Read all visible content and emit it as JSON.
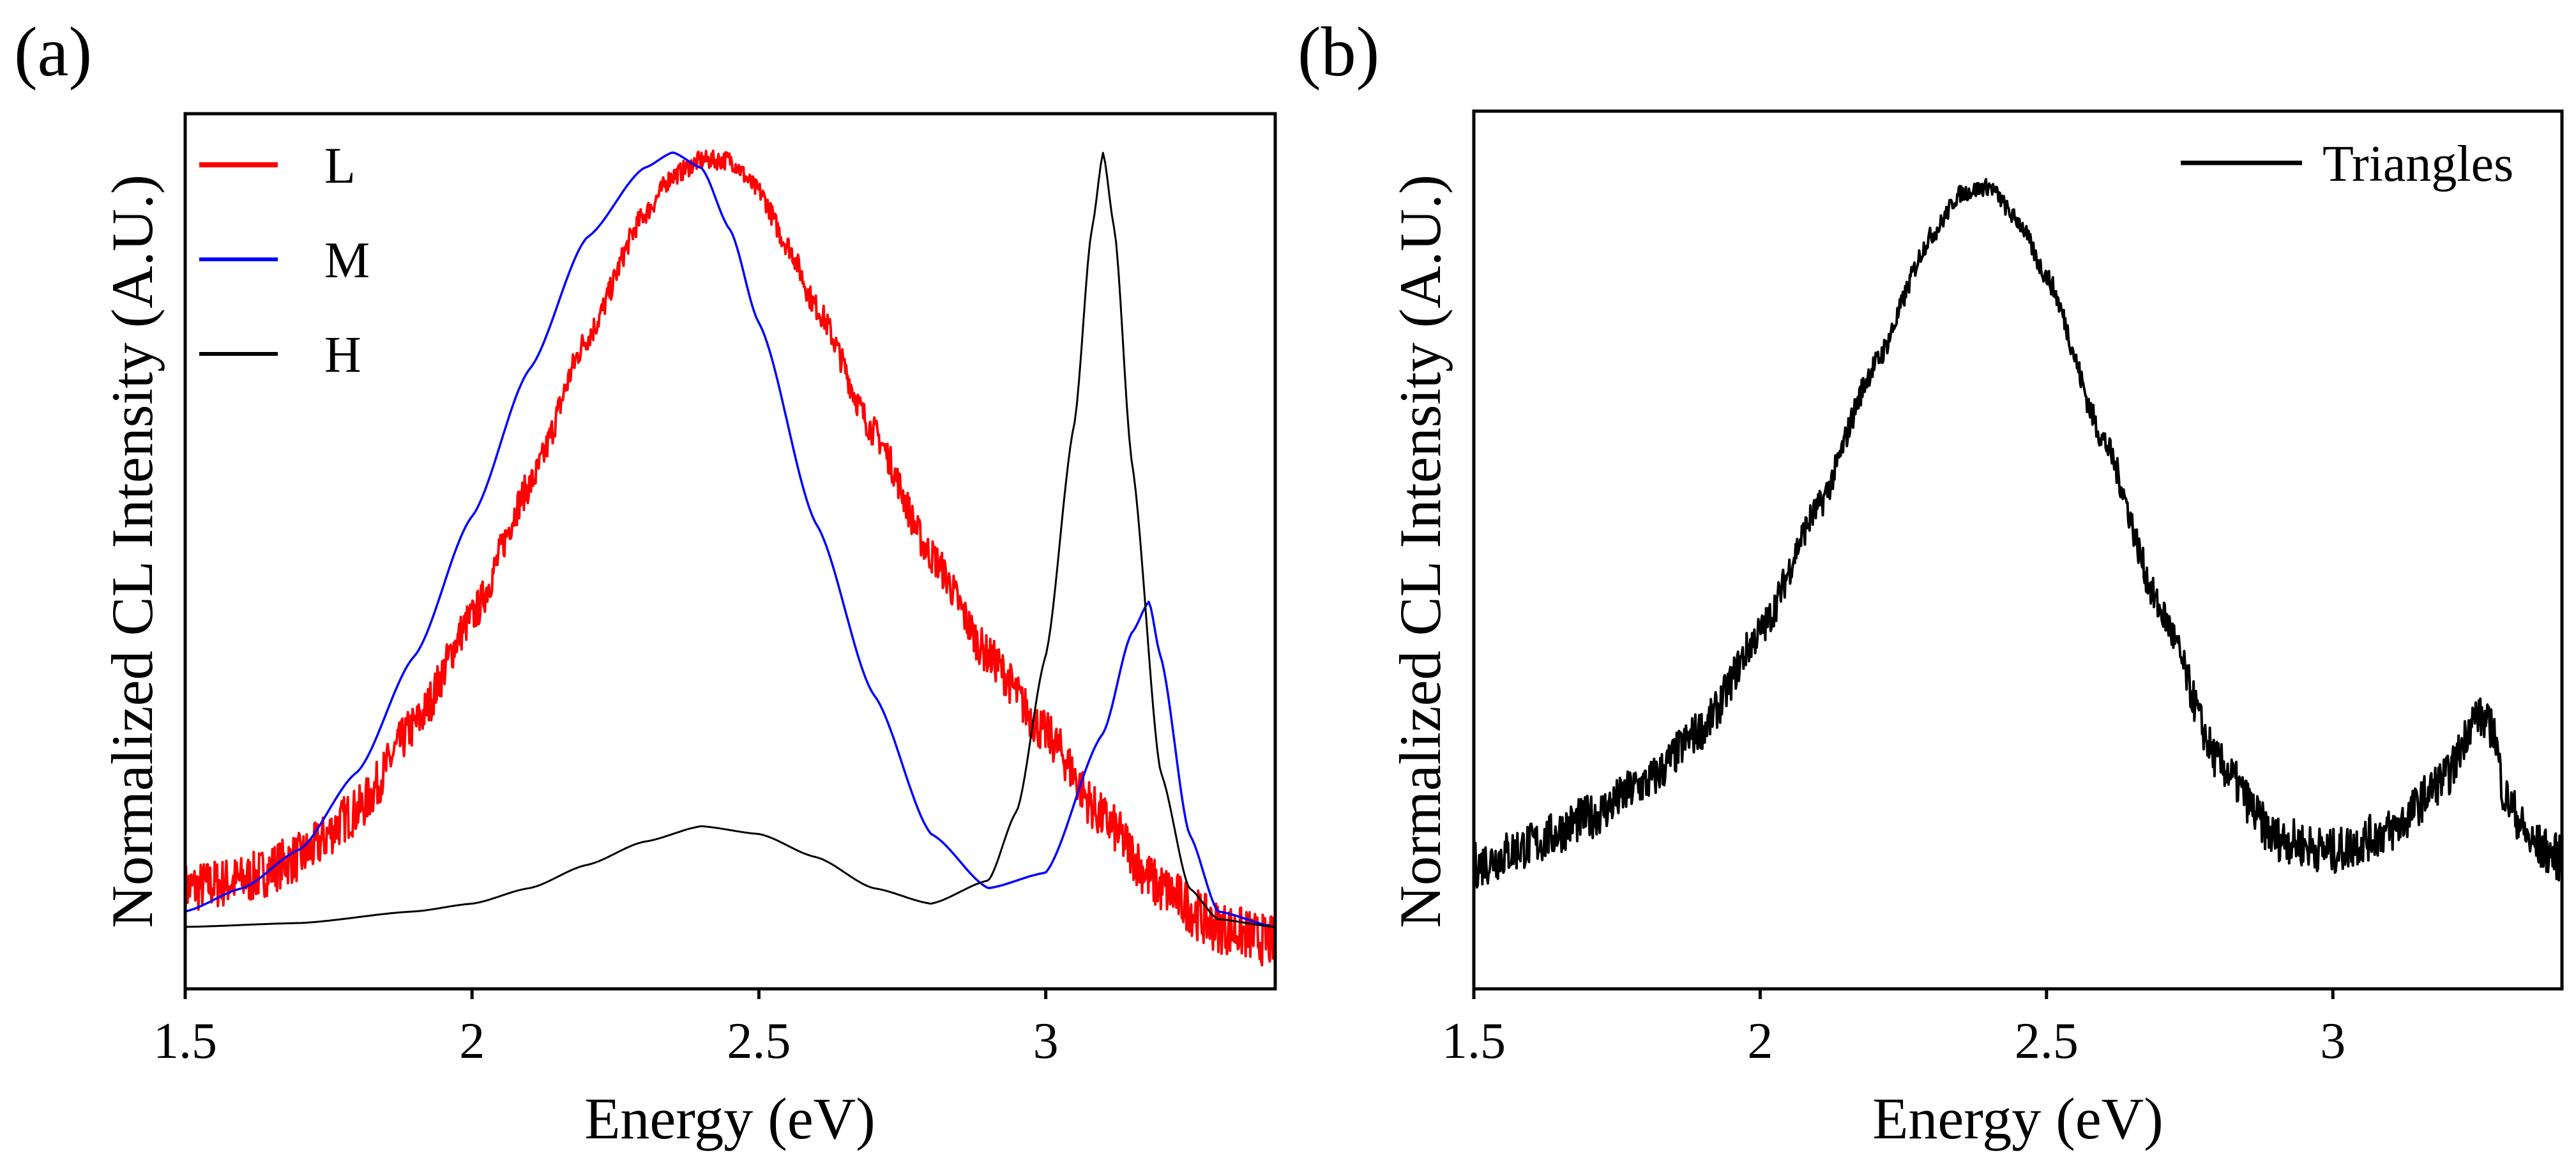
{
  "chart_data": [
    {
      "panel": "(a)",
      "type": "line",
      "title": "",
      "xlabel": "Energy (eV)",
      "ylabel": "Normalized CL Intensity (A.U.)",
      "xlim": [
        1.5,
        3.4
      ],
      "ylim": [
        -0.08,
        1.05
      ],
      "xticks": [
        1.5,
        2,
        2.5,
        3
      ],
      "xtick_labels": [
        "1.5",
        "2",
        "2.5",
        "3"
      ],
      "y_tick_labels_shown": false,
      "grid": false,
      "legend": {
        "position": "top-left"
      },
      "series": [
        {
          "name": "L",
          "color": "#ff0000",
          "noisy": true,
          "x": [
            1.5,
            1.6,
            1.7,
            1.8,
            1.9,
            2.0,
            2.1,
            2.2,
            2.3,
            2.35,
            2.4,
            2.45,
            2.5,
            2.55,
            2.6,
            2.7,
            2.8,
            2.9,
            3.0,
            3.1,
            3.2,
            3.3,
            3.4
          ],
          "y": [
            0.05,
            0.06,
            0.09,
            0.15,
            0.26,
            0.4,
            0.57,
            0.76,
            0.92,
            0.97,
            0.99,
            0.99,
            0.95,
            0.88,
            0.8,
            0.64,
            0.48,
            0.35,
            0.25,
            0.14,
            0.05,
            0.0,
            -0.02
          ]
        },
        {
          "name": "M",
          "color": "#0000ff",
          "noisy": false,
          "x": [
            1.5,
            1.6,
            1.7,
            1.8,
            1.9,
            2.0,
            2.1,
            2.2,
            2.3,
            2.35,
            2.4,
            2.45,
            2.5,
            2.6,
            2.7,
            2.8,
            2.9,
            3.0,
            3.1,
            3.15,
            3.18,
            3.2,
            3.25,
            3.3,
            3.4
          ],
          "y": [
            0.02,
            0.05,
            0.1,
            0.2,
            0.35,
            0.53,
            0.72,
            0.89,
            0.98,
            1.0,
            0.98,
            0.9,
            0.78,
            0.52,
            0.3,
            0.12,
            0.05,
            0.07,
            0.25,
            0.38,
            0.42,
            0.35,
            0.12,
            0.02,
            0.0
          ]
        },
        {
          "name": "H",
          "color": "#000000",
          "noisy": false,
          "x": [
            1.5,
            1.7,
            1.9,
            2.0,
            2.1,
            2.2,
            2.3,
            2.4,
            2.5,
            2.6,
            2.7,
            2.8,
            2.9,
            2.95,
            3.0,
            3.05,
            3.08,
            3.1,
            3.12,
            3.15,
            3.2,
            3.25,
            3.3,
            3.4
          ],
          "y": [
            0.0,
            0.005,
            0.02,
            0.03,
            0.05,
            0.08,
            0.11,
            0.13,
            0.12,
            0.09,
            0.05,
            0.03,
            0.06,
            0.15,
            0.35,
            0.65,
            0.9,
            1.0,
            0.9,
            0.6,
            0.2,
            0.05,
            0.01,
            0.0
          ]
        }
      ]
    },
    {
      "panel": "(b)",
      "type": "line",
      "title": "",
      "xlabel": "Energy (eV)",
      "ylabel": "Normalized CL Intensity (A.U.)",
      "xlim": [
        1.5,
        3.4
      ],
      "ylim": [
        -0.18,
        1.1
      ],
      "xticks": [
        1.5,
        2,
        2.5,
        3
      ],
      "xtick_labels": [
        "1.5",
        "2",
        "2.5",
        "3"
      ],
      "y_tick_labels_shown": false,
      "grid": false,
      "legend": {
        "position": "top-right"
      },
      "series": [
        {
          "name": "Triangles",
          "color": "#000000",
          "noisy": true,
          "x": [
            1.5,
            1.6,
            1.7,
            1.8,
            1.9,
            2.0,
            2.1,
            2.2,
            2.3,
            2.35,
            2.4,
            2.45,
            2.5,
            2.6,
            2.7,
            2.8,
            2.9,
            3.0,
            3.1,
            3.2,
            3.25,
            3.28,
            3.3,
            3.35,
            3.4
          ],
          "y": [
            0.0,
            0.03,
            0.07,
            0.12,
            0.2,
            0.34,
            0.52,
            0.73,
            0.92,
            0.98,
            0.99,
            0.94,
            0.86,
            0.62,
            0.37,
            0.15,
            0.04,
            0.02,
            0.05,
            0.13,
            0.22,
            0.2,
            0.1,
            0.03,
            0.01
          ]
        }
      ]
    }
  ]
}
